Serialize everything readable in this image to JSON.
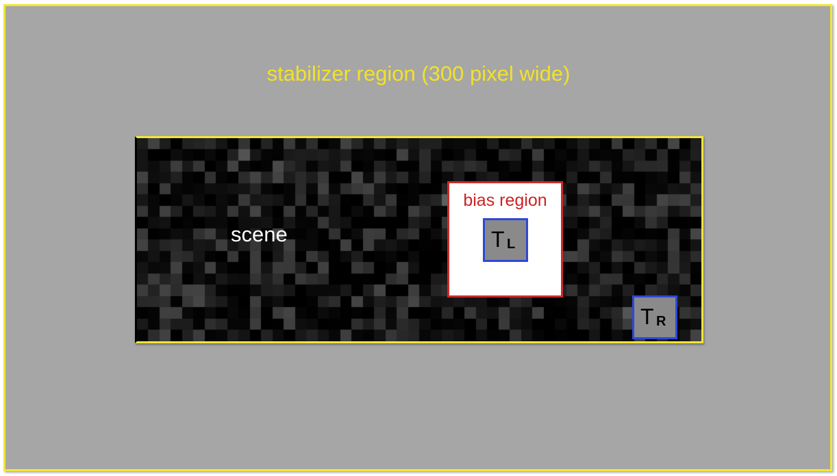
{
  "stabilizer": {
    "label": "stabilizer region (300 pixel wide)",
    "border_color": "#f2e63a",
    "fill_color": "#a6a6a6"
  },
  "scene": {
    "label": "scene"
  },
  "bias_region": {
    "label": "bias region",
    "border_color": "#cc2b2b"
  },
  "templates": {
    "left": {
      "main": "T",
      "sub": "L"
    },
    "right": {
      "main": "T",
      "sub": "R"
    },
    "border_color": "#2f48d8"
  }
}
